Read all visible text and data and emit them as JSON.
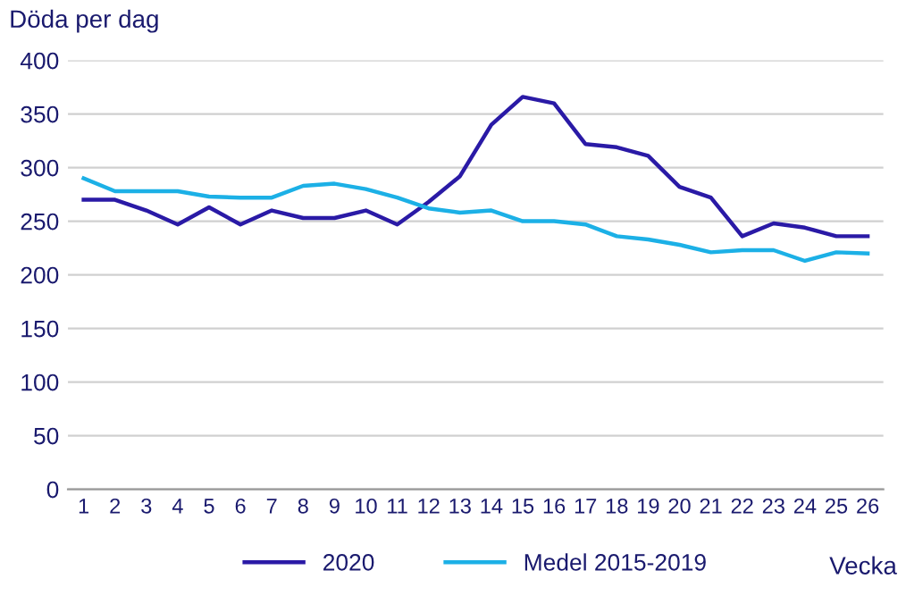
{
  "chart_data": {
    "type": "line",
    "ylabel": "Döda per dag",
    "xlabel": "Vecka",
    "categories": [
      "1",
      "2",
      "3",
      "4",
      "5",
      "6",
      "7",
      "8",
      "9",
      "10",
      "11",
      "12",
      "13",
      "14",
      "15",
      "16",
      "17",
      "18",
      "19",
      "20",
      "21",
      "22",
      "23",
      "24",
      "25",
      "26"
    ],
    "series": [
      {
        "name": "2020",
        "color": "#2a1aa6",
        "values": [
          270,
          270,
          260,
          247,
          263,
          247,
          260,
          253,
          253,
          260,
          247,
          268,
          292,
          340,
          366,
          360,
          322,
          319,
          311,
          282,
          272,
          236,
          248,
          244,
          236,
          236
        ]
      },
      {
        "name": "Medel 2015-2019",
        "color": "#1cb0e6",
        "values": [
          290,
          278,
          278,
          278,
          273,
          272,
          272,
          283,
          285,
          280,
          272,
          262,
          258,
          260,
          250,
          250,
          247,
          236,
          233,
          228,
          221,
          223,
          223,
          213,
          221,
          220
        ]
      }
    ],
    "ylim": [
      0,
      400
    ],
    "yticks": [
      0,
      50,
      100,
      150,
      200,
      250,
      300,
      350,
      400
    ],
    "grid": "y",
    "legend": "bottom",
    "marker": "none",
    "line_style": "solid"
  }
}
